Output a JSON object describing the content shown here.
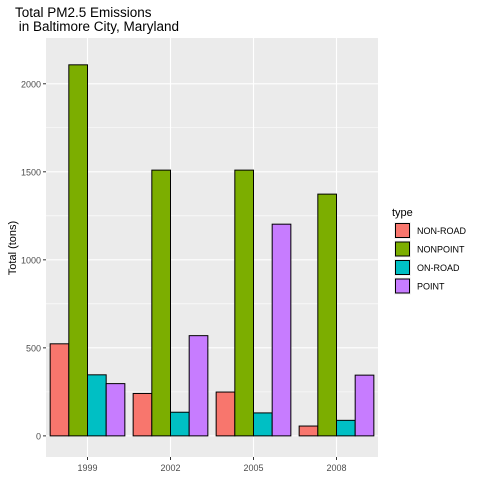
{
  "chart_data": {
    "type": "bar",
    "title_line1": "Total PM2.5 Emissions",
    "title_line2": " in Baltimore City, Maryland",
    "xlabel": "",
    "ylabel": "Total (tons)",
    "categories": [
      "1999",
      "2002",
      "2005",
      "2008"
    ],
    "ylim": [
      -120,
      2260
    ],
    "yticks": [
      0,
      500,
      1000,
      1500,
      2000
    ],
    "grid": true,
    "legend_title": "type",
    "legend_position": "right",
    "series": [
      {
        "name": "NON-ROAD",
        "color": "#F8766D",
        "values": [
          522.94,
          240.85,
          248.93,
          55.82
        ]
      },
      {
        "name": "NONPOINT",
        "color": "#7CAE00",
        "values": [
          2107.62,
          1509.5,
          1509.5,
          1373.21
        ]
      },
      {
        "name": "ON-ROAD",
        "color": "#00BFC4",
        "values": [
          346.82,
          134.31,
          130.43,
          88.28
        ]
      },
      {
        "name": "POINT",
        "color": "#C77CFF",
        "values": [
          296.8,
          569.26,
          1202.49,
          344.98
        ]
      }
    ]
  }
}
